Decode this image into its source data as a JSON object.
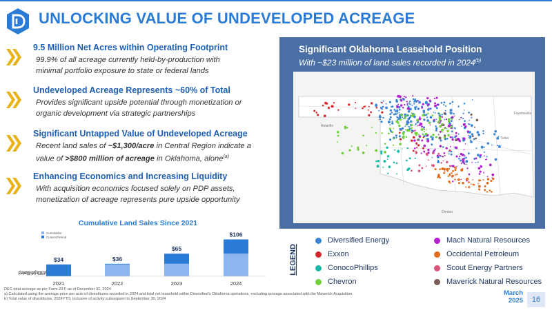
{
  "header": {
    "title": "UNLOCKING VALUE OF UNDEVELOPED ACREAGE",
    "logo_icon": "diversified-energy-logo-icon"
  },
  "bullets": [
    {
      "heading": "9.5 Million Net Acres within Operating Footprint",
      "text": [
        "99.9% of all acreage currently held-by-production with",
        "minimal portfolio exposure to state or federal lands"
      ]
    },
    {
      "heading": "Undeveloped Acreage Represents ~60% of Total",
      "text": [
        "Provides significant upside potential through monetization or",
        "organic development via strategic partnerships"
      ]
    },
    {
      "heading": "Significant Untapped Value of Undeveloped Acreage",
      "text_parts": {
        "line1_pre": "Recent land sales of ",
        "line1_bold": "~$1,300/acre",
        "line1_post": " in Central Region indicate a",
        "line2_pre": "value of ",
        "line2_bold": ">$800 million of acreage",
        "line2_post": " in Oklahoma, alone",
        "line2_sup": "(a)"
      }
    },
    {
      "heading": "Enhancing Economics and Increasing Liquidity",
      "text": [
        "With acquisition economics focused solely on PDP assets,",
        "monetization of acreage represents pure upside opportunity"
      ]
    }
  ],
  "bullet_icon": "double-chevron-right-icon",
  "chart_data": {
    "type": "bar",
    "title": "Cumulative Land Sales Since 2021",
    "ylabel": "Acreage Sales",
    "ylabel_unit": "(USD Millions)",
    "categories": [
      "2021",
      "2022",
      "2023",
      "2024"
    ],
    "series": [
      {
        "name": "Cumulative",
        "values": [
          0,
          34,
          36,
          65
        ],
        "color": "#8db6ef"
      },
      {
        "name": "Current Period",
        "values": [
          34,
          2,
          29,
          41
        ],
        "color": "#2a7bd6"
      }
    ],
    "totals": [
      34,
      36,
      65,
      106
    ],
    "total_labels": [
      "$34",
      "$36",
      "$65",
      "$106"
    ],
    "ylim": [
      0,
      115
    ],
    "legend": "top-left",
    "grid": false
  },
  "map": {
    "heading": "Significant Oklahoma Leasehold Position",
    "subheading": "With ~$23 million of land sales recorded in 2024",
    "sub_sup": "(b)",
    "city_labels": [
      "Amarillo",
      "Tulsa",
      "Denton",
      "Fayetteville"
    ]
  },
  "legend": {
    "title": "LEGEND",
    "items": [
      {
        "label": "Diversified Energy",
        "color": "#3a86d6"
      },
      {
        "label": "Mach Natural Resources",
        "color": "#b31fd0"
      },
      {
        "label": "Exxon",
        "color": "#d9262b"
      },
      {
        "label": "Occidental Petroleum",
        "color": "#e36b1a"
      },
      {
        "label": "ConocoPhillips",
        "color": "#18b8a8"
      },
      {
        "label": "Scout Energy Partners",
        "color": "#d9557a"
      },
      {
        "label": "Chevron",
        "color": "#72d03a"
      },
      {
        "label": "Maverick Natural Resources",
        "color": "#7a5c58"
      }
    ]
  },
  "footnotes": [
    "DEC total acreage as per Form 20-F as of December 31, 2024",
    "a)  Calculated using the average price per acre of divestitures recorded in 2024 and total net leasehold within Diversified's Oklahoma operations, excluding acreage associated with the Maverick Acquisition",
    "b)  Total value of divestitures, 2024YTD, inclusive of activity subsequent to September 30, 2024"
  ],
  "footer": {
    "month": "March",
    "year": "2025",
    "page": "16"
  },
  "colors": {
    "accent": "#2a7bd6",
    "navy": "#1f3864",
    "chevron": "#e8b21a",
    "map_panel": "#4a6fa5"
  }
}
